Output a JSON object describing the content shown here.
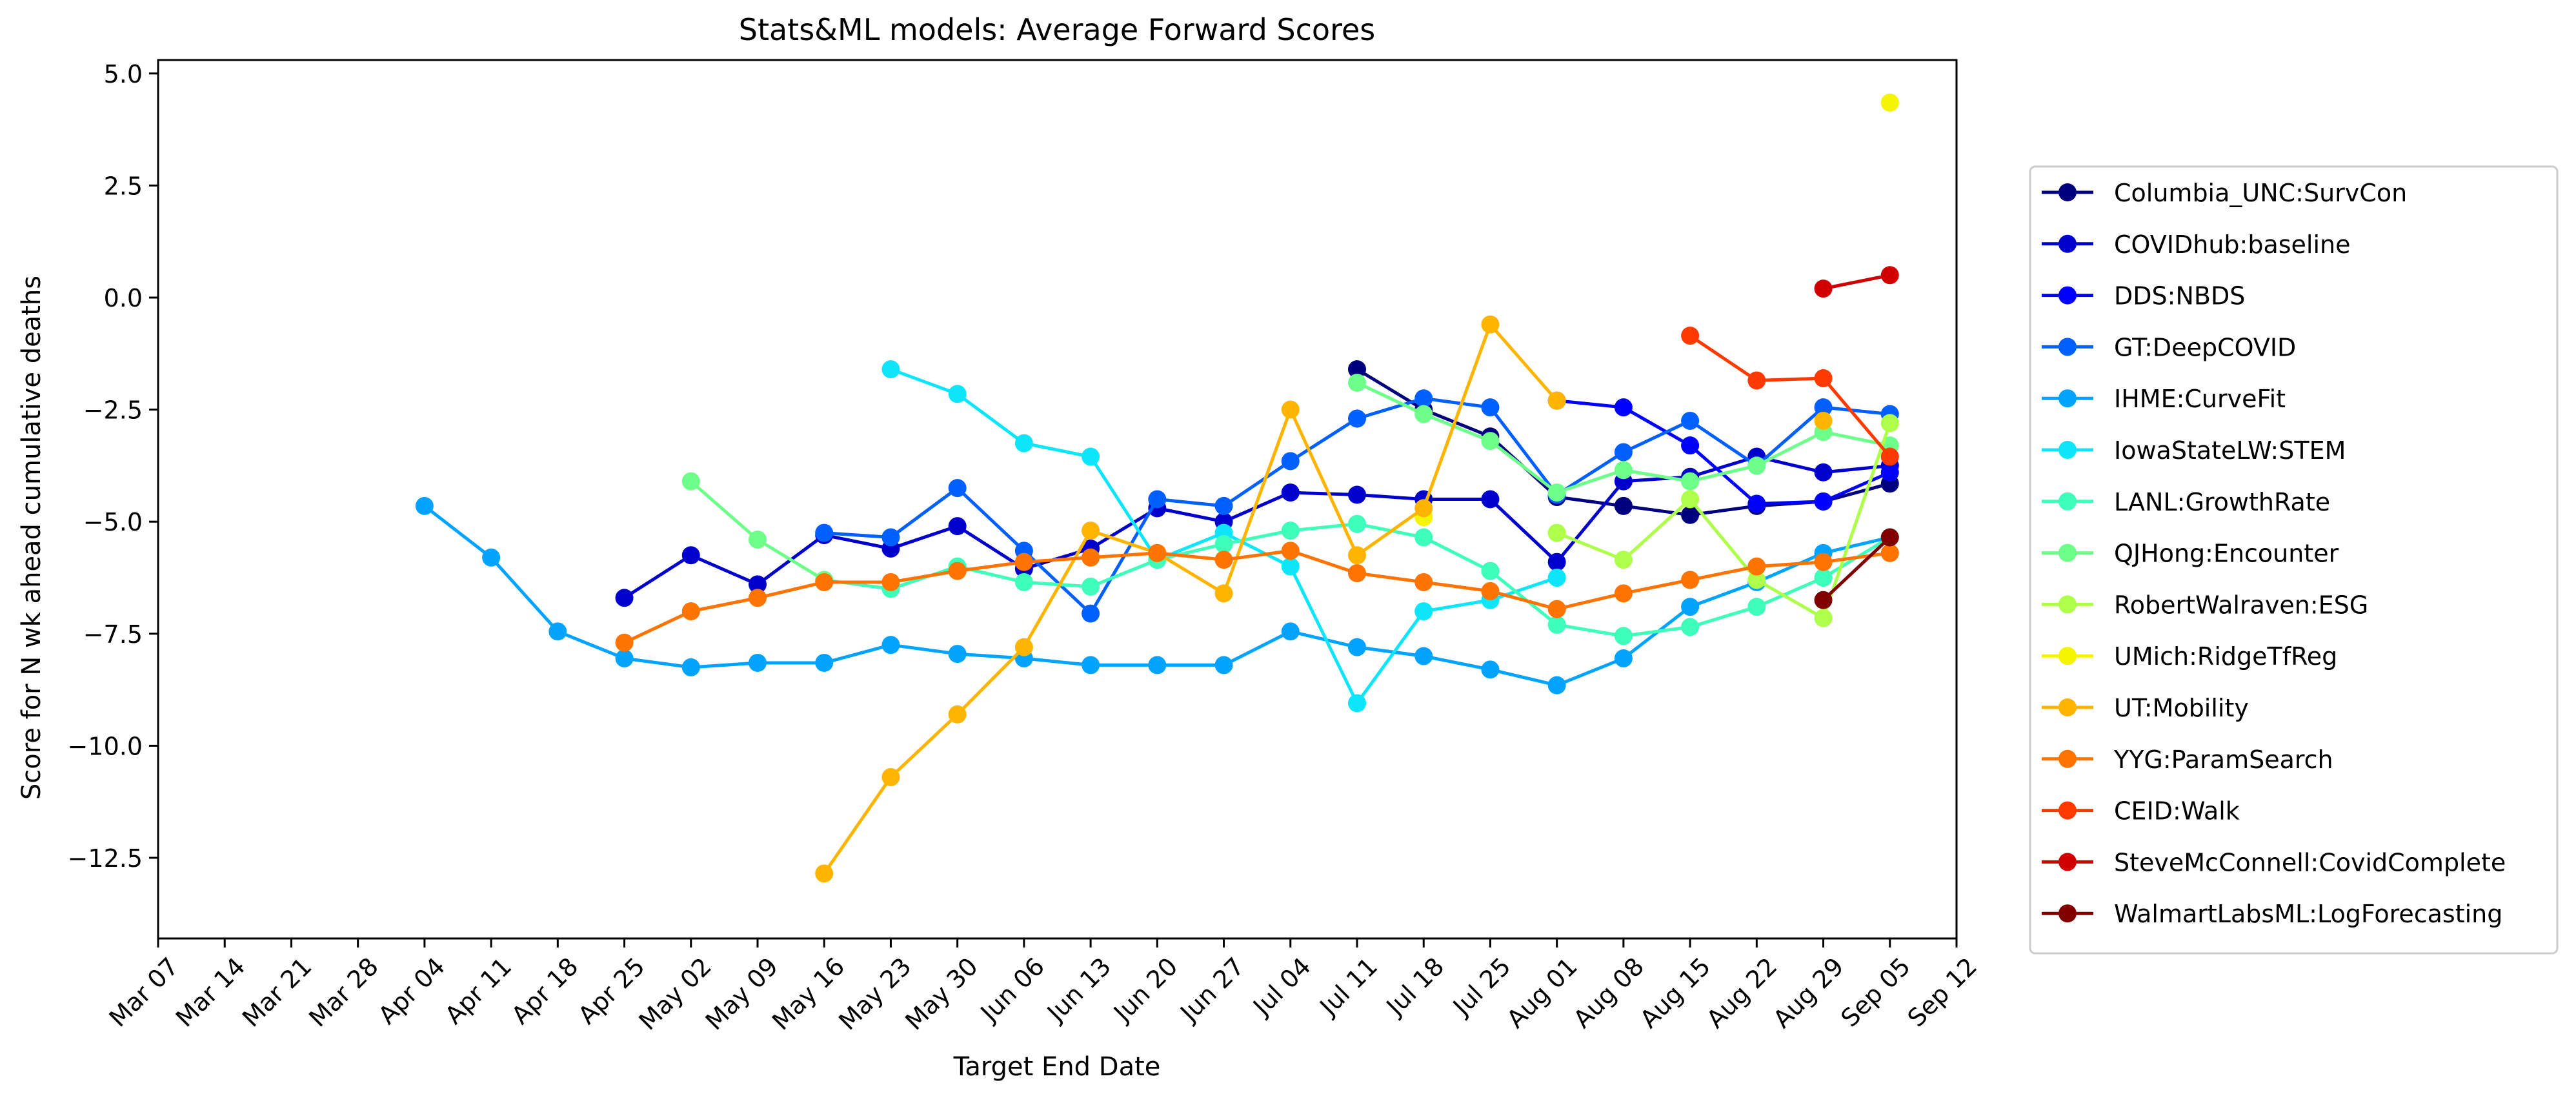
{
  "chart_data": {
    "type": "line",
    "title": "Stats&ML models: Average Forward Scores",
    "xlabel": "Target End Date",
    "ylabel": "Score for N wk ahead cumulative deaths",
    "x": [
      "Mar 07",
      "Mar 14",
      "Mar 21",
      "Mar 28",
      "Apr 04",
      "Apr 11",
      "Apr 18",
      "Apr 25",
      "May 02",
      "May 09",
      "May 16",
      "May 23",
      "May 30",
      "Jun 06",
      "Jun 13",
      "Jun 20",
      "Jun 27",
      "Jul 04",
      "Jul 11",
      "Jul 18",
      "Jul 25",
      "Aug 01",
      "Aug 08",
      "Aug 15",
      "Aug 22",
      "Aug 29",
      "Sep 05",
      "Sep 12"
    ],
    "ylim": [
      -14.3,
      5.3
    ],
    "yticks": [
      "5.0",
      "2.5",
      "0.0",
      "−2.5",
      "−5.0",
      "−7.5",
      "−10.0",
      "−12.5"
    ],
    "ytick_values": [
      5,
      2.5,
      0,
      -2.5,
      -5,
      -7.5,
      -10,
      -12.5
    ],
    "grid": false,
    "legend_position": "right",
    "series": [
      {
        "name": "Columbia_UNC:SurvCon",
        "color": "#00007f",
        "values": [
          null,
          null,
          null,
          null,
          null,
          null,
          null,
          null,
          null,
          null,
          null,
          null,
          null,
          null,
          null,
          null,
          null,
          null,
          -1.6,
          -2.5,
          -3.1,
          -4.45,
          -4.65,
          -4.85,
          -4.65,
          -4.55,
          -4.15,
          null
        ]
      },
      {
        "name": "COVIDhub:baseline",
        "color": "#0000cd",
        "values": [
          null,
          null,
          null,
          null,
          null,
          null,
          null,
          -6.7,
          -5.75,
          -6.4,
          -5.3,
          -5.6,
          -5.1,
          -6.05,
          -5.6,
          -4.7,
          -5.0,
          -4.35,
          -4.4,
          -4.5,
          -4.5,
          -5.9,
          -4.1,
          -4.0,
          -3.55,
          -3.9,
          -3.75,
          null
        ]
      },
      {
        "name": "DDS:NBDS",
        "color": "#0000ff",
        "values": [
          null,
          null,
          null,
          null,
          null,
          null,
          null,
          null,
          null,
          null,
          null,
          null,
          null,
          null,
          null,
          null,
          null,
          null,
          null,
          null,
          null,
          -2.3,
          -2.45,
          -3.3,
          -4.6,
          -4.55,
          -3.9,
          null
        ]
      },
      {
        "name": "GT:DeepCOVID",
        "color": "#0060ff",
        "values": [
          null,
          null,
          null,
          null,
          null,
          null,
          null,
          null,
          null,
          null,
          -5.25,
          -5.35,
          -4.25,
          -5.65,
          -7.05,
          -4.5,
          -4.65,
          -3.65,
          -2.7,
          -2.25,
          -2.45,
          -4.4,
          -3.45,
          -2.75,
          -3.75,
          -2.45,
          -2.6,
          null
        ]
      },
      {
        "name": "IHME:CurveFit",
        "color": "#00a4ff",
        "values": [
          null,
          null,
          null,
          null,
          -4.65,
          -5.8,
          -7.45,
          -8.05,
          -8.25,
          -8.15,
          -8.15,
          -7.75,
          -7.95,
          -8.05,
          -8.2,
          -8.2,
          -8.2,
          -7.45,
          -7.8,
          -8.0,
          -8.3,
          -8.65,
          -8.05,
          -6.9,
          -6.35,
          -5.7,
          -5.35,
          null
        ]
      },
      {
        "name": "IowaStateLW:STEM",
        "color": "#0ce5fa",
        "values": [
          null,
          null,
          null,
          null,
          null,
          null,
          null,
          null,
          null,
          null,
          null,
          -1.6,
          -2.15,
          -3.25,
          -3.55,
          -5.85,
          -5.25,
          -6.0,
          -9.05,
          -7.0,
          -6.75,
          -6.25,
          null,
          null,
          null,
          null,
          null,
          null
        ]
      },
      {
        "name": "LANL:GrowthRate",
        "color": "#3dffb9",
        "values": [
          null,
          null,
          null,
          null,
          null,
          null,
          null,
          null,
          null,
          null,
          -6.3,
          -6.5,
          -6.0,
          -6.35,
          -6.45,
          -5.85,
          -5.5,
          -5.2,
          -5.05,
          -5.35,
          -6.1,
          -7.3,
          -7.55,
          -7.35,
          -6.9,
          -6.25,
          -5.35,
          null
        ]
      },
      {
        "name": "QJHong:Encounter",
        "color": "#6dff89",
        "values": [
          null,
          null,
          null,
          null,
          null,
          null,
          null,
          null,
          -4.1,
          -5.4,
          -6.3,
          null,
          null,
          null,
          null,
          null,
          null,
          null,
          -1.9,
          -2.6,
          -3.2,
          -4.35,
          -3.85,
          -4.1,
          -3.75,
          -3.0,
          -3.3,
          null
        ]
      },
      {
        "name": "RobertWalraven:ESG",
        "color": "#adff49",
        "values": [
          null,
          null,
          null,
          null,
          null,
          null,
          null,
          null,
          null,
          null,
          null,
          null,
          null,
          null,
          null,
          null,
          null,
          null,
          null,
          null,
          null,
          -5.25,
          -5.85,
          -4.5,
          -6.3,
          -7.15,
          -2.8,
          null
        ]
      },
      {
        "name": "UMich:RidgeTfReg",
        "color": "#f5f500",
        "values": [
          null,
          null,
          null,
          null,
          null,
          null,
          null,
          null,
          null,
          null,
          null,
          null,
          null,
          null,
          null,
          null,
          null,
          null,
          null,
          -4.9,
          null,
          null,
          null,
          null,
          null,
          null,
          4.35,
          null
        ]
      },
      {
        "name": "UT:Mobility",
        "color": "#ffb400",
        "values": [
          null,
          null,
          null,
          null,
          null,
          null,
          null,
          null,
          null,
          null,
          -12.85,
          -10.7,
          -9.3,
          -7.8,
          -5.2,
          -5.7,
          -6.6,
          -2.5,
          -5.75,
          -4.7,
          -0.6,
          -2.3,
          null,
          null,
          null,
          -2.75,
          null,
          null
        ]
      },
      {
        "name": "YYG:ParamSearch",
        "color": "#ff7300",
        "values": [
          null,
          null,
          null,
          null,
          null,
          null,
          null,
          -7.7,
          -7.0,
          -6.7,
          -6.35,
          -6.35,
          -6.1,
          -5.9,
          -5.8,
          -5.7,
          -5.85,
          -5.65,
          -6.15,
          -6.35,
          -6.55,
          -6.95,
          -6.6,
          -6.3,
          -6.0,
          -5.9,
          -5.7,
          null
        ]
      },
      {
        "name": "CEID:Walk",
        "color": "#ff3a00",
        "values": [
          null,
          null,
          null,
          null,
          null,
          null,
          null,
          null,
          null,
          null,
          null,
          null,
          null,
          null,
          null,
          null,
          null,
          null,
          null,
          null,
          null,
          null,
          null,
          -0.85,
          -1.85,
          -1.8,
          -3.55,
          null
        ]
      },
      {
        "name": "SteveMcConnell:CovidComplete",
        "color": "#d00000",
        "values": [
          null,
          null,
          null,
          null,
          null,
          null,
          null,
          null,
          null,
          null,
          null,
          null,
          null,
          null,
          null,
          null,
          null,
          null,
          null,
          null,
          null,
          null,
          null,
          null,
          null,
          0.2,
          0.5,
          null
        ]
      },
      {
        "name": "WalmartLabsML:LogForecasting",
        "color": "#800000",
        "values": [
          null,
          null,
          null,
          null,
          null,
          null,
          null,
          null,
          null,
          null,
          null,
          null,
          null,
          null,
          null,
          null,
          null,
          null,
          null,
          null,
          null,
          null,
          null,
          null,
          null,
          -6.75,
          -5.35,
          null
        ]
      }
    ]
  }
}
